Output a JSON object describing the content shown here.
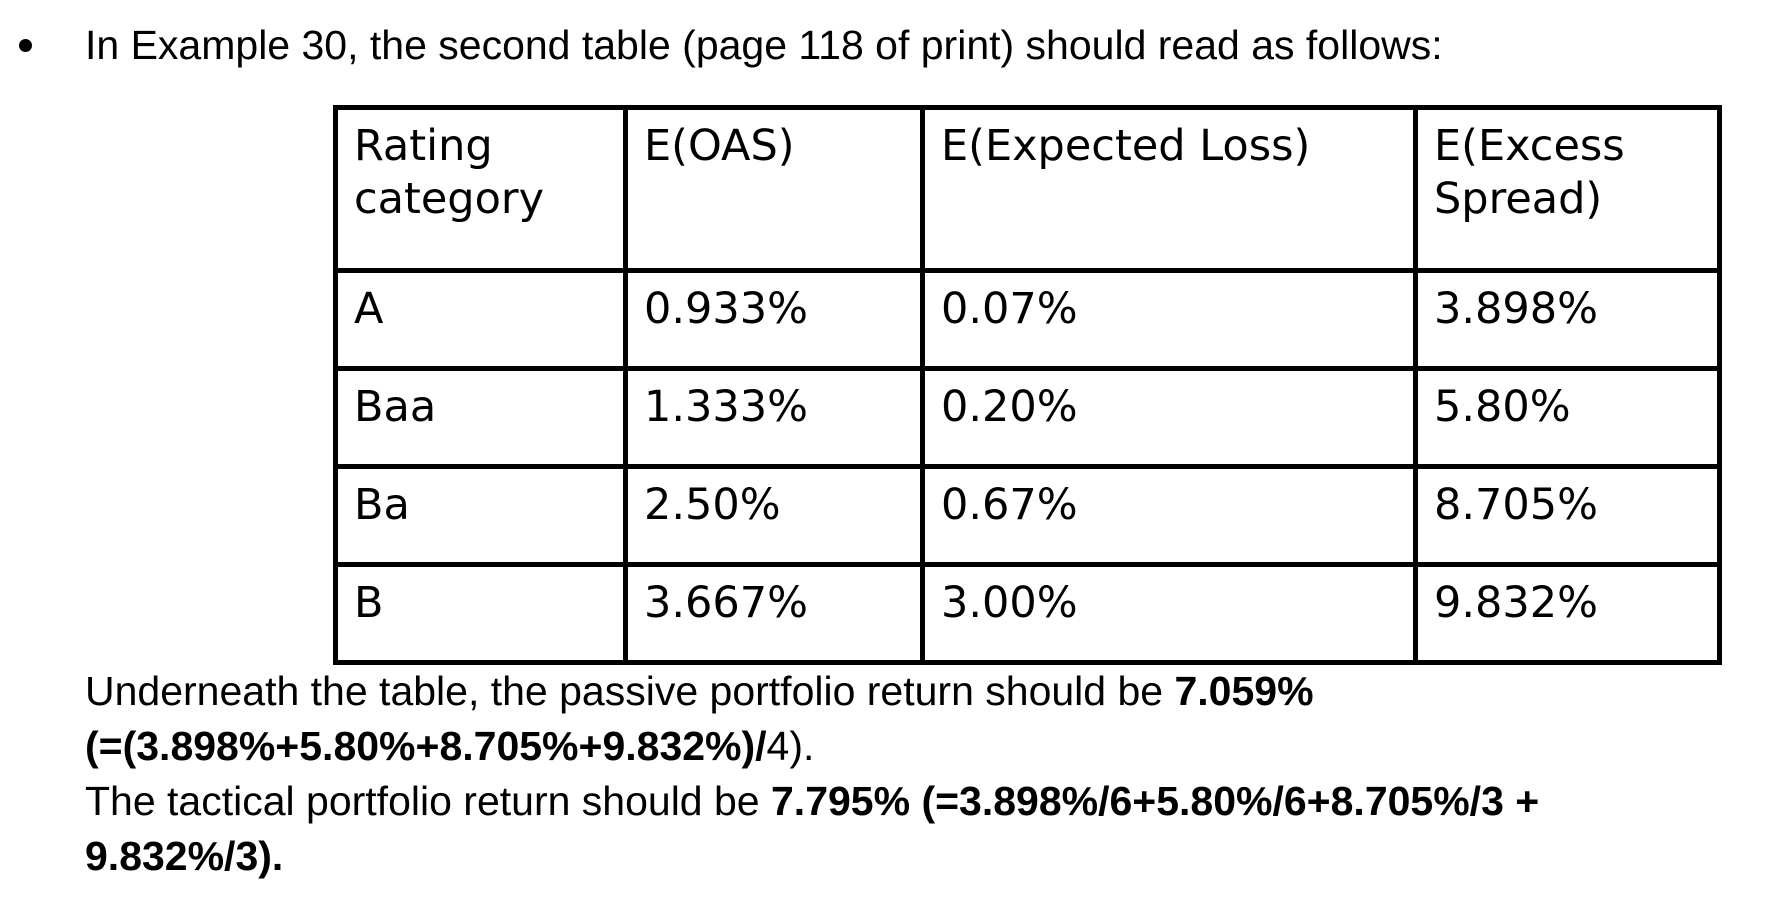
{
  "bullet_item": {
    "marker": "•",
    "text": "In Example 30, the second table (page 118 of print) should read as follows:"
  },
  "table": {
    "headers": [
      "Rating category",
      "E(OAS)",
      "E(Expected Loss)",
      "E(Excess Spread)"
    ],
    "rows": [
      {
        "rating": "A",
        "e_oas": "0.933%",
        "e_expected_loss": "0.07%",
        "e_excess_spread": "3.898%"
      },
      {
        "rating": "Baa",
        "e_oas": "1.333%",
        "e_expected_loss": "0.20%",
        "e_excess_spread": "5.80%"
      },
      {
        "rating": "Ba",
        "e_oas": "2.50%",
        "e_expected_loss": "0.67%",
        "e_excess_spread": "8.705%"
      },
      {
        "rating": "B",
        "e_oas": "3.667%",
        "e_expected_loss": "3.00%",
        "e_excess_spread": "9.832%"
      }
    ]
  },
  "notes": {
    "passive_line1_regular": "Underneath the table, the passive portfolio return should be ",
    "passive_line1_bold": "7.059%",
    "passive_line2_bold": "(=(3.898%+5.80%+8.705%+9.832%)/",
    "passive_line2_regular": "4).",
    "tactical_line1_regular": "The tactical portfolio return should be ",
    "tactical_line1_bold": "7.795% (=3.898%/6+5.80%/6+8.705%/3 +",
    "tactical_line2_bold": "9.832%/3)."
  },
  "colors": {
    "text": "#000000",
    "background": "#ffffff",
    "table_border": "#000000"
  }
}
